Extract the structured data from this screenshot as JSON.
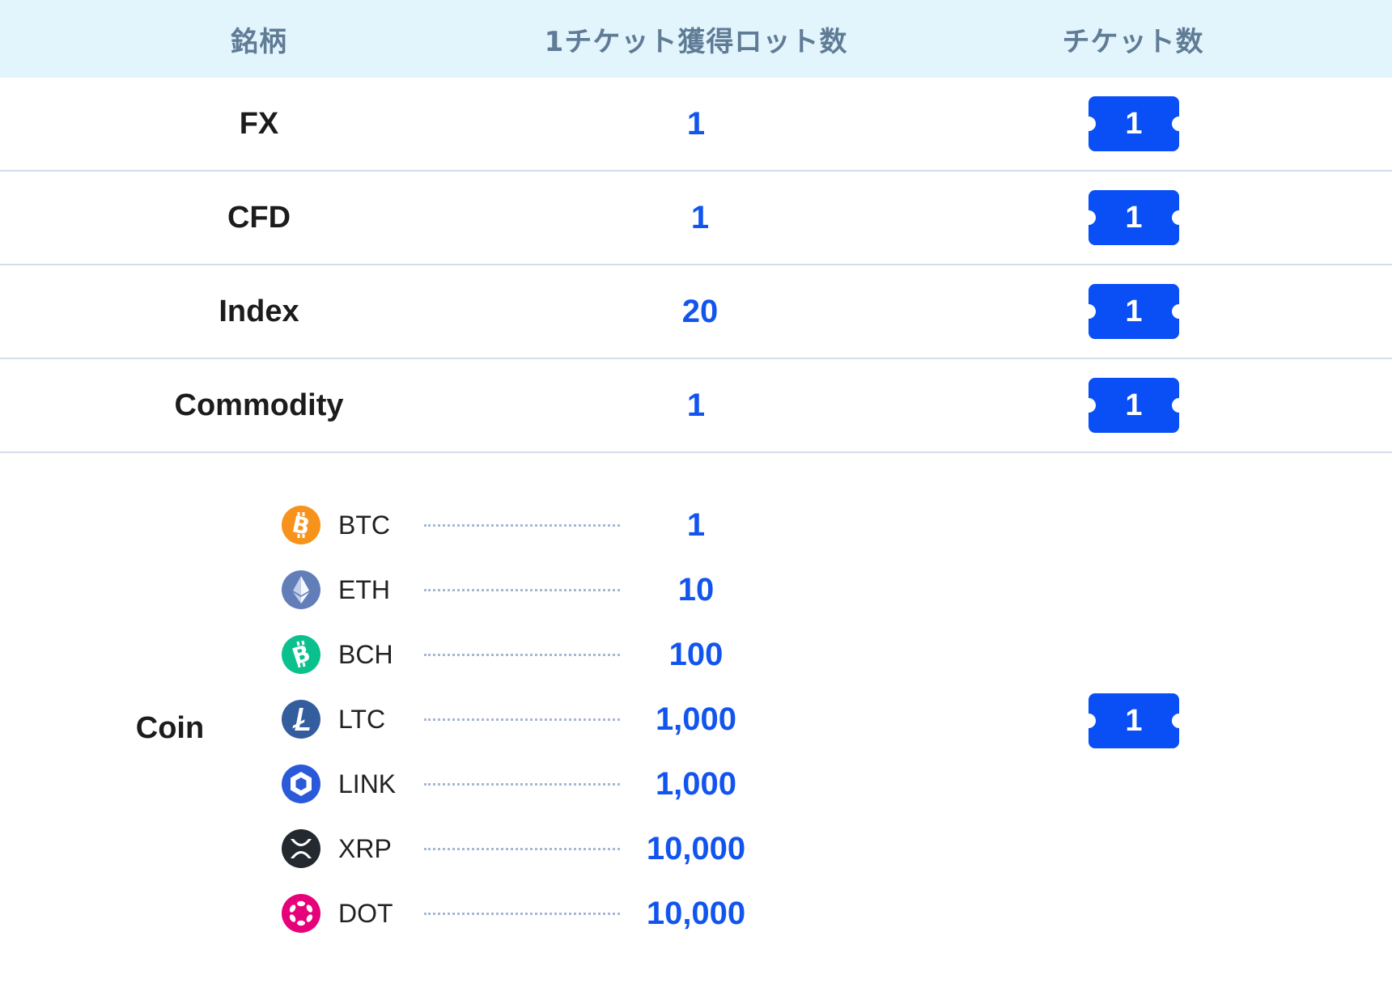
{
  "header": {
    "col_symbol": "銘柄",
    "col_lots": "1チケット獲得ロット数",
    "col_tickets": "チケット数"
  },
  "rows": [
    {
      "name": "FX",
      "lots": "1",
      "tickets": "1"
    },
    {
      "name": "CFD",
      "lots": "1",
      "tickets": "1"
    },
    {
      "name": "Index",
      "lots": "20",
      "tickets": "1"
    },
    {
      "name": "Commodity",
      "lots": "1",
      "tickets": "1"
    }
  ],
  "coin": {
    "name": "Coin",
    "tickets": "1",
    "items": [
      {
        "symbol": "BTC",
        "lots": "1",
        "icon": "bitcoin-icon",
        "color": "#f7931a"
      },
      {
        "symbol": "ETH",
        "lots": "10",
        "icon": "ethereum-icon",
        "color": "#627eb9"
      },
      {
        "symbol": "BCH",
        "lots": "100",
        "icon": "bitcoin-cash-icon",
        "color": "#0ac18e"
      },
      {
        "symbol": "LTC",
        "lots": "1,000",
        "icon": "litecoin-icon",
        "color": "#345d9d"
      },
      {
        "symbol": "LINK",
        "lots": "1,000",
        "icon": "chainlink-icon",
        "color": "#2a5ada"
      },
      {
        "symbol": "XRP",
        "lots": "10,000",
        "icon": "ripple-icon",
        "color": "#23292f"
      },
      {
        "symbol": "DOT",
        "lots": "10,000",
        "icon": "polkadot-icon",
        "color": "#e6007a"
      }
    ]
  },
  "colors": {
    "header_bg": "#e2f4fc",
    "header_text": "#5f7b95",
    "accent_blue": "#1255ee",
    "ticket_blue": "#0a4ff5",
    "divider": "#d4deea"
  }
}
